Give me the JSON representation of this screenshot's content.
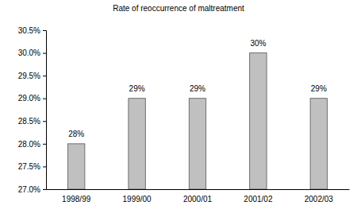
{
  "chart_data": {
    "type": "bar",
    "title": "Rate of reoccurrence of maltreatment",
    "categories": [
      "1998/99",
      "1999/00",
      "2000/01",
      "2001/02",
      "2002/03"
    ],
    "values": [
      28,
      29,
      29,
      30,
      29
    ],
    "value_labels": [
      "28%",
      "29%",
      "29%",
      "30%",
      "29%"
    ],
    "color": "#c0c0c0",
    "ylim": [
      27,
      30.5
    ],
    "yticks": [
      {
        "value": 27,
        "label": "27.0%"
      },
      {
        "value": 27.5,
        "label": "27.5%"
      },
      {
        "value": 28,
        "label": "28.0%"
      },
      {
        "value": 28.5,
        "label": "28.5%"
      },
      {
        "value": 29,
        "label": "29.0%"
      },
      {
        "value": 29.5,
        "label": "29.5%"
      },
      {
        "value": 30,
        "label": "30.0%"
      },
      {
        "value": 30.5,
        "label": "30.5%"
      }
    ],
    "data_labels": true,
    "grid": false
  }
}
